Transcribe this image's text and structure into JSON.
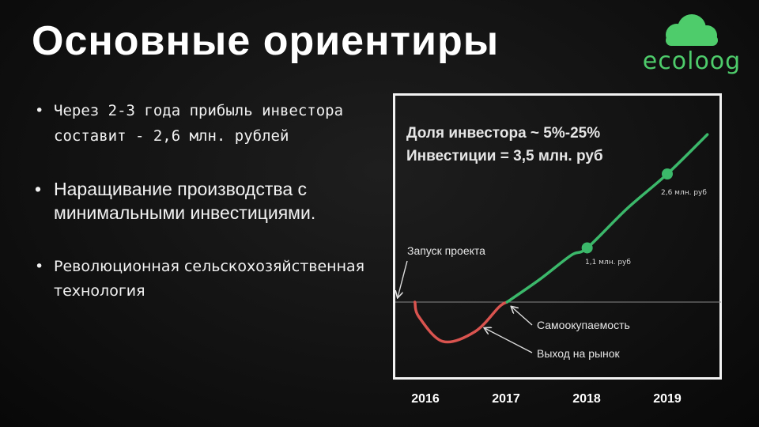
{
  "header": {
    "title": "Основные ориентиры"
  },
  "logo": {
    "text": "ecoloog",
    "icon": "cloud-icon",
    "color": "#4ecb6b"
  },
  "bullets": [
    "Через 2-3 года прибыль инвестора составит - 2,6 млн. рублей",
    "Наращивание производства с минимальными инвестициями.",
    "Революционная сельскохозяйственная технология"
  ],
  "chart_data": {
    "type": "line",
    "title": "Доля инвестора ~ 5%-25%",
    "subtitle": "Инвестиции = 3,5 млн. руб",
    "x_ticks": [
      "2016",
      "2017",
      "2018",
      "2019"
    ],
    "xlim": [
      2016,
      2019.5
    ],
    "ylim": [
      -1,
      4
    ],
    "baseline": 0,
    "series": [
      {
        "segment": "loss",
        "color": "#d9534f",
        "points": [
          [
            2015.85,
            0
          ],
          [
            2015.9,
            -0.3
          ],
          [
            2016.2,
            -0.8
          ],
          [
            2016.6,
            -0.6
          ],
          [
            2016.9,
            -0.1
          ],
          [
            2017.0,
            0
          ]
        ]
      },
      {
        "segment": "growth",
        "color": "#3cb86b",
        "points": [
          [
            2017.0,
            0
          ],
          [
            2017.4,
            0.45
          ],
          [
            2017.8,
            0.95
          ],
          [
            2018.0,
            1.1
          ],
          [
            2018.5,
            1.9
          ],
          [
            2019.0,
            2.6
          ],
          [
            2019.5,
            3.4
          ]
        ]
      }
    ],
    "markers": [
      {
        "x": 2018.0,
        "y": 1.1,
        "label": "1,1 млн. руб"
      },
      {
        "x": 2019.0,
        "y": 2.6,
        "label": "2,6 млн. руб"
      }
    ],
    "annotations": [
      {
        "text": "Запуск проекта",
        "x": 2015.85,
        "y": 0
      },
      {
        "text": "Самоокупаемость",
        "x": 2017.0,
        "y": 0
      },
      {
        "text": "Выход на рынок",
        "x": 2016.6,
        "y": -0.6
      }
    ]
  }
}
